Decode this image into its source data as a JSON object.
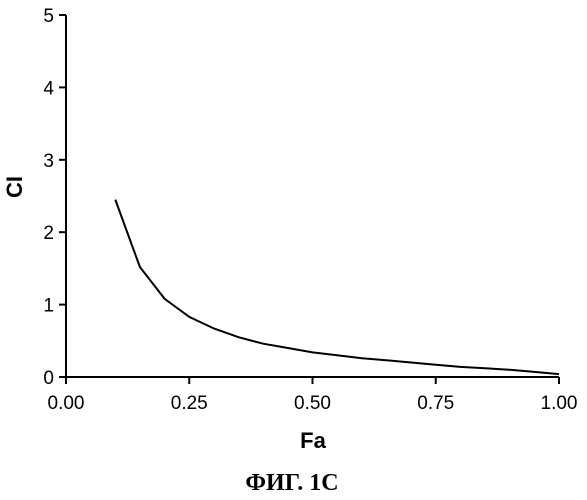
{
  "chart_data": {
    "type": "line",
    "xlabel": "Fa",
    "ylabel": "CI",
    "caption": "ФИГ. 1С",
    "xlim": [
      0,
      1
    ],
    "ylim": [
      0,
      5
    ],
    "x_ticks": [
      "0.00",
      "0.25",
      "0.50",
      "0.75",
      "1.00"
    ],
    "y_ticks": [
      "0",
      "1",
      "2",
      "3",
      "4",
      "5"
    ],
    "grid": false,
    "series": [
      {
        "x": [
          0.1,
          0.15,
          0.2,
          0.25,
          0.3,
          0.35,
          0.4,
          0.45,
          0.5,
          0.55,
          0.6,
          0.65,
          0.7,
          0.75,
          0.8,
          0.85,
          0.9,
          0.95,
          1.0
        ],
        "y": [
          2.45,
          1.52,
          1.08,
          0.83,
          0.67,
          0.55,
          0.46,
          0.4,
          0.34,
          0.3,
          0.26,
          0.23,
          0.2,
          0.17,
          0.14,
          0.12,
          0.1,
          0.07,
          0.04
        ]
      }
    ]
  }
}
